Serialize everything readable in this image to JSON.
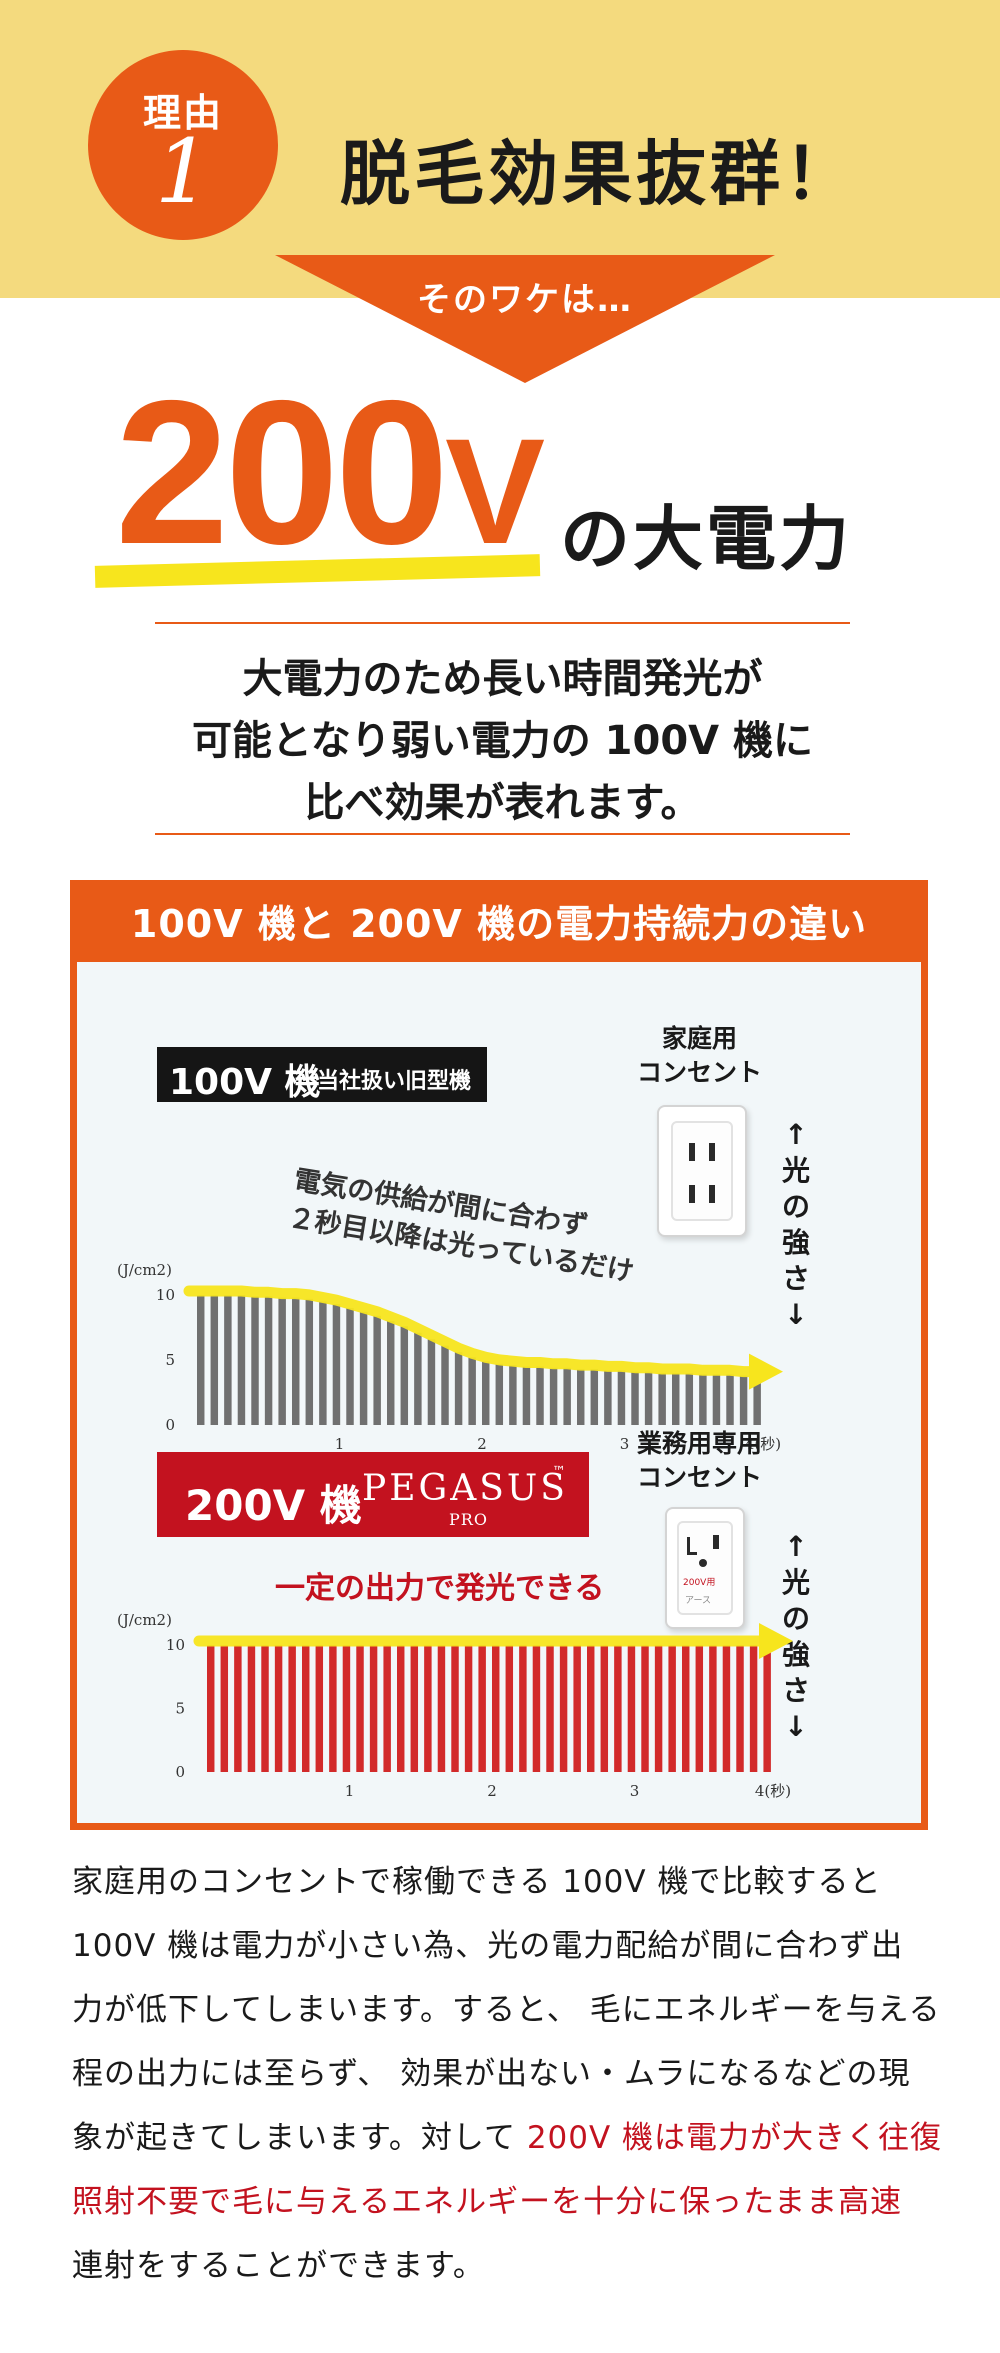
{
  "header": {
    "badge_label": "理由",
    "badge_number": "1",
    "headline": "脱毛効果抜群！",
    "arrow_text": "そのワケは…"
  },
  "hero": {
    "number": "200",
    "unit": "V",
    "suffix": "の大電力"
  },
  "lead": {
    "lines": [
      "大電力のため長い時間発光が",
      "可能となり弱い電力の 100V 機に",
      "比べ効果が表れます。"
    ]
  },
  "comparison": {
    "title": "100V 機と 200V 機の電力持続力の違い",
    "machine100": {
      "label": "100V 機",
      "sublabel": "当社扱い旧型機",
      "socket_title": [
        "家庭用",
        "コンセント"
      ],
      "strength_label": [
        "↑",
        "光",
        "の",
        "強",
        "さ",
        "↓"
      ],
      "annotation": [
        "電気の供給が間に合わず",
        "２秒目以降は光っているだけ"
      ]
    },
    "machine200": {
      "label": "200V 機",
      "brand": "PEGASUS",
      "tm": "™",
      "model": "PRO",
      "socket_title": [
        "業務用専用",
        "コンセント"
      ],
      "socket_sticker": "200V用",
      "socket_ground": "アース",
      "strength_label": [
        "↑",
        "光",
        "の",
        "強",
        "さ",
        "↓"
      ],
      "annotation": "一定の出力で発光できる"
    }
  },
  "chart_data": [
    {
      "type": "bar",
      "ylabel": "(J/cm2)",
      "yticks": [
        0,
        5,
        10
      ],
      "ylim": [
        0,
        10
      ],
      "xticks": [
        "1",
        "2",
        "3",
        "4(秒)"
      ],
      "xlim": [
        0,
        4
      ],
      "bar_color": "#707070",
      "trend_color": "#f7e51d",
      "values": [
        10,
        10,
        10,
        10,
        9.9,
        9.9,
        9.8,
        9.8,
        9.7,
        9.5,
        9.3,
        9.0,
        8.7,
        8.4,
        8.0,
        7.6,
        7.1,
        6.6,
        6.1,
        5.6,
        5.2,
        4.9,
        4.7,
        4.6,
        4.5,
        4.5,
        4.4,
        4.4,
        4.3,
        4.3,
        4.2,
        4.2,
        4.1,
        4.1,
        4.0,
        4.0,
        4.0,
        3.9,
        3.9,
        3.9,
        3.8,
        3.8
      ]
    },
    {
      "type": "bar",
      "ylabel": "(J/cm2)",
      "yticks": [
        0,
        5,
        10
      ],
      "ylim": [
        0,
        10
      ],
      "xticks": [
        "1",
        "2",
        "3",
        "4(秒)"
      ],
      "xlim": [
        0,
        4
      ],
      "bar_color": "#d22a2a",
      "trend_color": "#f7e51d",
      "values": [
        10,
        10,
        10,
        10,
        10,
        10,
        10,
        10,
        10,
        10,
        10,
        10,
        10,
        10,
        10,
        10,
        10,
        10,
        10,
        10,
        10,
        10,
        10,
        10,
        10,
        10,
        10,
        10,
        10,
        10,
        10,
        10,
        10,
        10,
        10,
        10,
        10,
        10,
        10,
        10,
        10,
        10
      ]
    }
  ],
  "body": {
    "lines": [
      [
        {
          "t": "家庭用のコンセントで稼働できる 100V 機で比較すると",
          "red": false
        }
      ],
      [
        {
          "t": "100V 機は電力が小さい為、光の電力配給が間に合わず出",
          "red": false
        }
      ],
      [
        {
          "t": "力が低下してしまいます。すると、 毛にエネルギーを与える",
          "red": false
        }
      ],
      [
        {
          "t": "程の出力には至らず、 効果が出ない・ムラになるなどの現",
          "red": false
        }
      ],
      [
        {
          "t": "象が起きてしまいます。対して ",
          "red": false
        },
        {
          "t": "200V 機は電力が大きく往復",
          "red": true
        }
      ],
      [
        {
          "t": "照射不要で毛に与えるエネルギーを十分に保ったまま高速",
          "red": true
        }
      ],
      [
        {
          "t": "連射をすることができます。",
          "red": false
        }
      ]
    ]
  }
}
